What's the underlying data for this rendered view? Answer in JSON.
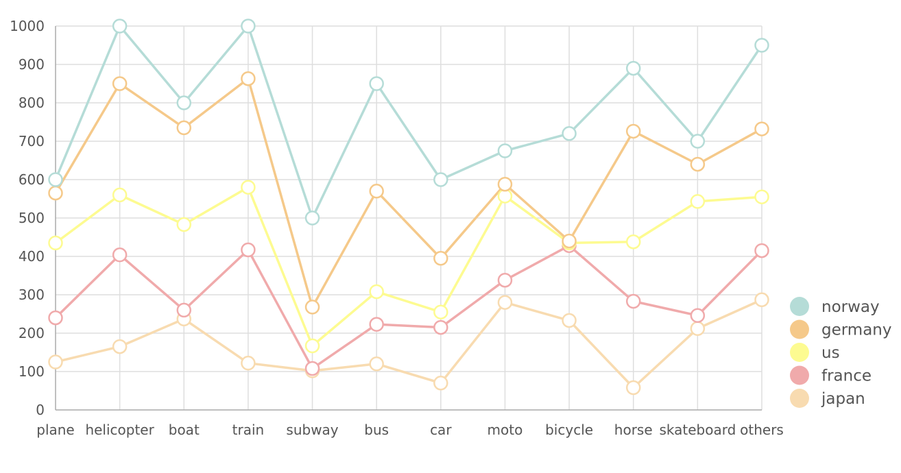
{
  "chart_data": {
    "type": "line",
    "categories": [
      "plane",
      "helicopter",
      "boat",
      "train",
      "subway",
      "bus",
      "car",
      "moto",
      "bicycle",
      "horse",
      "skateboard",
      "others"
    ],
    "ylim": [
      0,
      1000
    ],
    "yticks": [
      0,
      100,
      200,
      300,
      400,
      500,
      600,
      700,
      800,
      900,
      1000
    ],
    "grid": true,
    "legend_position": "right",
    "series": [
      {
        "name": "norway",
        "color": "#b5dcd7",
        "values": [
          600,
          1000,
          800,
          1000,
          500,
          850,
          600,
          675,
          720,
          890,
          700,
          950
        ]
      },
      {
        "name": "germany",
        "color": "#f5c98a",
        "values": [
          565,
          850,
          735,
          863,
          268,
          570,
          395,
          588,
          440,
          726,
          640,
          732
        ]
      },
      {
        "name": "us",
        "color": "#fdfb91",
        "values": [
          435,
          560,
          483,
          580,
          167,
          308,
          255,
          557,
          435,
          438,
          543,
          555
        ]
      },
      {
        "name": "france",
        "color": "#f0aaab",
        "values": [
          240,
          404,
          260,
          417,
          108,
          223,
          215,
          338,
          428,
          283,
          246,
          415
        ]
      },
      {
        "name": "japan",
        "color": "#f8dbb0",
        "values": [
          125,
          165,
          237,
          122,
          102,
          120,
          70,
          280,
          233,
          58,
          212,
          287
        ]
      }
    ]
  }
}
